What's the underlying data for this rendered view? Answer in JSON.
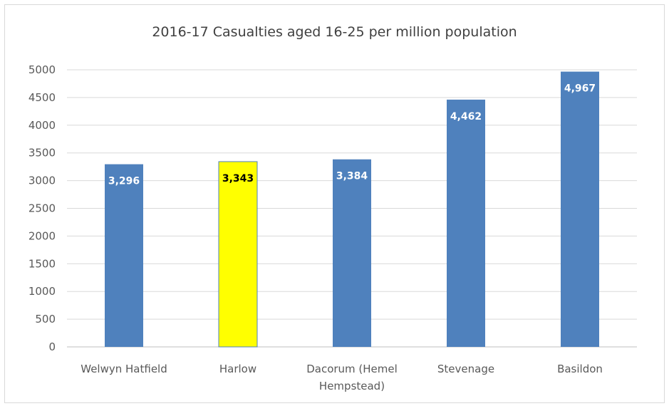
{
  "chart_data": {
    "type": "bar",
    "title": "2016-17 Casualties aged 16-25 per million population",
    "xlabel": "",
    "ylabel": "",
    "categories": [
      "Welwyn Hatfield",
      "Harlow",
      "Dacorum (Hemel Hempstead)",
      "Stevenage",
      "Basildon"
    ],
    "category_lines": [
      [
        "Welwyn Hatfield"
      ],
      [
        "Harlow"
      ],
      [
        "Dacorum (Hemel",
        "Hempstead)"
      ],
      [
        "Stevenage"
      ],
      [
        "Basildon"
      ]
    ],
    "values": [
      3296,
      3343,
      3384,
      4462,
      4967
    ],
    "data_labels": [
      "3,296",
      "3,343",
      "3,384",
      "4,462",
      "4,967"
    ],
    "bar_colors": [
      "#4f81bd",
      "#ffff00",
      "#4f81bd",
      "#4f81bd",
      "#4f81bd"
    ],
    "label_colors": [
      "#ffffff",
      "#000000",
      "#ffffff",
      "#ffffff",
      "#ffffff"
    ],
    "ylim": [
      0,
      5000
    ],
    "yticks": [
      0,
      500,
      1000,
      1500,
      2000,
      2500,
      3000,
      3500,
      4000,
      4500,
      5000
    ],
    "grid": true,
    "legend": "none"
  }
}
